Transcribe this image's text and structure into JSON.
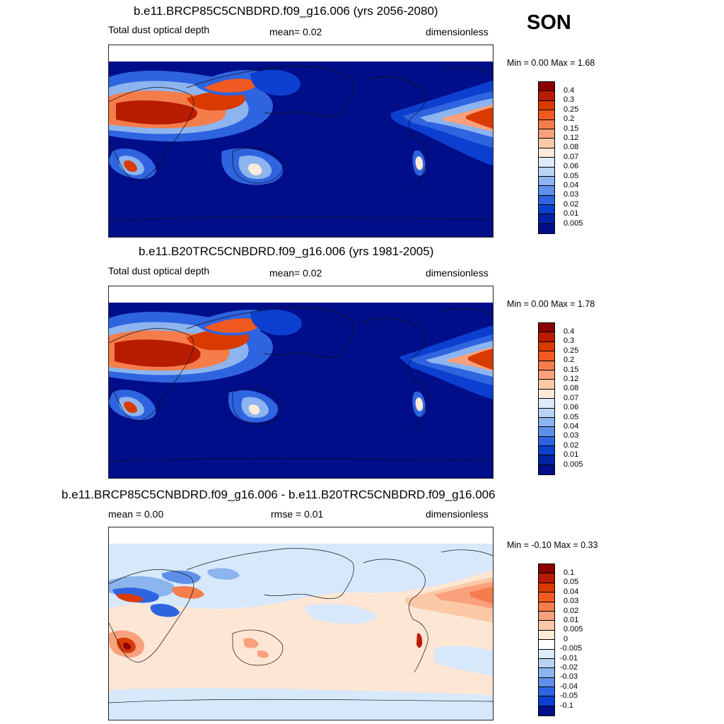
{
  "season": "SON",
  "panels": [
    {
      "title": "b.e11.BRCP85C5CNBDRD.f09_g16.006 (yrs 2056-2080)",
      "variable": "Total dust optical depth",
      "stat1": "mean=   0.02",
      "units": "dimensionless",
      "minmax": "Min =   0.00 Max =   1.68",
      "colorbar": {
        "labels": [
          "0.4",
          "0.3",
          "0.25",
          "0.2",
          "0.15",
          "0.12",
          "0.08",
          "0.07",
          "0.06",
          "0.05",
          "0.04",
          "0.03",
          "0.02",
          "0.01",
          "0.005"
        ],
        "colors": [
          "#8a0000",
          "#b81c00",
          "#d93a00",
          "#f05a20",
          "#f57d4b",
          "#f9a07d",
          "#fbc9a8",
          "#fdebd8",
          "#dceaf9",
          "#b9d3f5",
          "#8cb4ee",
          "#5f8fe8",
          "#2f64e0",
          "#0c3fcf",
          "#0022a3",
          "#000e8a"
        ]
      }
    },
    {
      "title": "b.e11.B20TRC5CNBDRD.f09_g16.006 (yrs 1981-2005)",
      "variable": "Total dust optical depth",
      "stat1": "mean=   0.02",
      "units": "dimensionless",
      "minmax": "Min =   0.00 Max =   1.78",
      "colorbar": {
        "labels": [
          "0.4",
          "0.3",
          "0.25",
          "0.2",
          "0.15",
          "0.12",
          "0.08",
          "0.07",
          "0.06",
          "0.05",
          "0.04",
          "0.03",
          "0.02",
          "0.01",
          "0.005"
        ],
        "colors": [
          "#8a0000",
          "#b81c00",
          "#d93a00",
          "#f05a20",
          "#f57d4b",
          "#f9a07d",
          "#fbc9a8",
          "#fdebd8",
          "#dceaf9",
          "#b9d3f5",
          "#8cb4ee",
          "#5f8fe8",
          "#2f64e0",
          "#0c3fcf",
          "#0022a3",
          "#000e8a"
        ]
      }
    },
    {
      "title": "b.e11.BRCP85C5CNBDRD.f09_g16.006 - b.e11.B20TRC5CNBDRD.f09_g16.006",
      "stat1": "mean =   0.00",
      "stat2": "rmse =   0.01",
      "units": "dimensionless",
      "minmax": "Min =  -0.10 Max =   0.33",
      "colorbar": {
        "labels": [
          "0.1",
          "0.05",
          "0.04",
          "0.03",
          "0.02",
          "0.01",
          "0.005",
          "0",
          "-0.005",
          "-0.01",
          "-0.02",
          "-0.03",
          "-0.04",
          "-0.05",
          "-0.1"
        ],
        "colors": [
          "#8a0000",
          "#b81c00",
          "#d93a00",
          "#f05a20",
          "#f57d4b",
          "#f9a07d",
          "#fbc9a8",
          "#fdebd8",
          "#ffffff",
          "#dceaf9",
          "#b9d3f5",
          "#8cb4ee",
          "#5f8fe8",
          "#2f64e0",
          "#0c3fcf",
          "#000e8a"
        ]
      }
    }
  ],
  "fill_colors": {
    "background_low": "#000e8a",
    "diff_positive_weak": "#fde6d4",
    "diff_negative_weak": "#d7e8fb",
    "coastline": "#111111"
  }
}
